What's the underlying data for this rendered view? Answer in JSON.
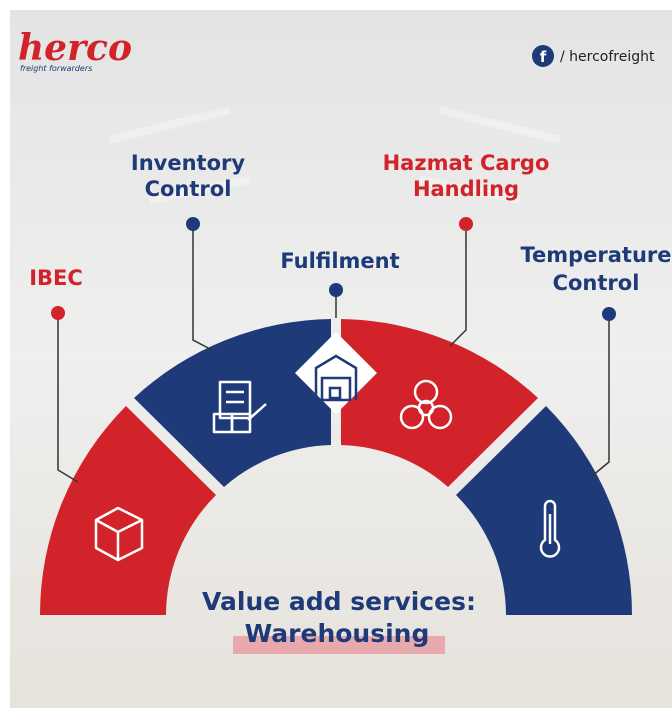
{
  "header": {
    "logo": "herco",
    "logo_tagline": "freight forwarders",
    "social_handle": "/ hercofreight"
  },
  "services": [
    {
      "label_lines": [
        "IBEC"
      ]
    },
    {
      "label_lines": [
        "Inventory",
        "Control"
      ]
    },
    {
      "label_lines": [
        "Fulfilment"
      ]
    },
    {
      "label_lines": [
        "Hazmat Cargo",
        "Handling"
      ]
    },
    {
      "label_lines": [
        "Temperature",
        "Control"
      ]
    }
  ],
  "footer": {
    "title": "Value add services:",
    "subtitle": "Warehousing"
  }
}
